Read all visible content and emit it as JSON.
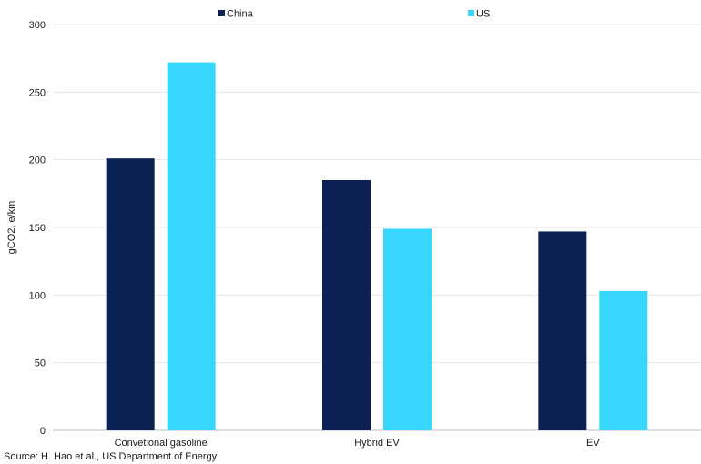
{
  "chart_data": {
    "type": "bar",
    "categories": [
      "Convetional gasoline",
      "Hybrid EV",
      "EV"
    ],
    "series": [
      {
        "name": "China",
        "color": "#0b2153",
        "values": [
          201,
          185,
          147
        ]
      },
      {
        "name": "US",
        "color": "#36d6fd",
        "values": [
          272,
          149,
          103
        ]
      }
    ],
    "ylabel": "gCO2, e/km",
    "ylim": [
      0,
      300
    ],
    "yticks": [
      0,
      50,
      100,
      150,
      200,
      250,
      300
    ],
    "legend_position": "top",
    "grid": true
  },
  "source": "Source: H. Hao et al., US Department of Energy"
}
